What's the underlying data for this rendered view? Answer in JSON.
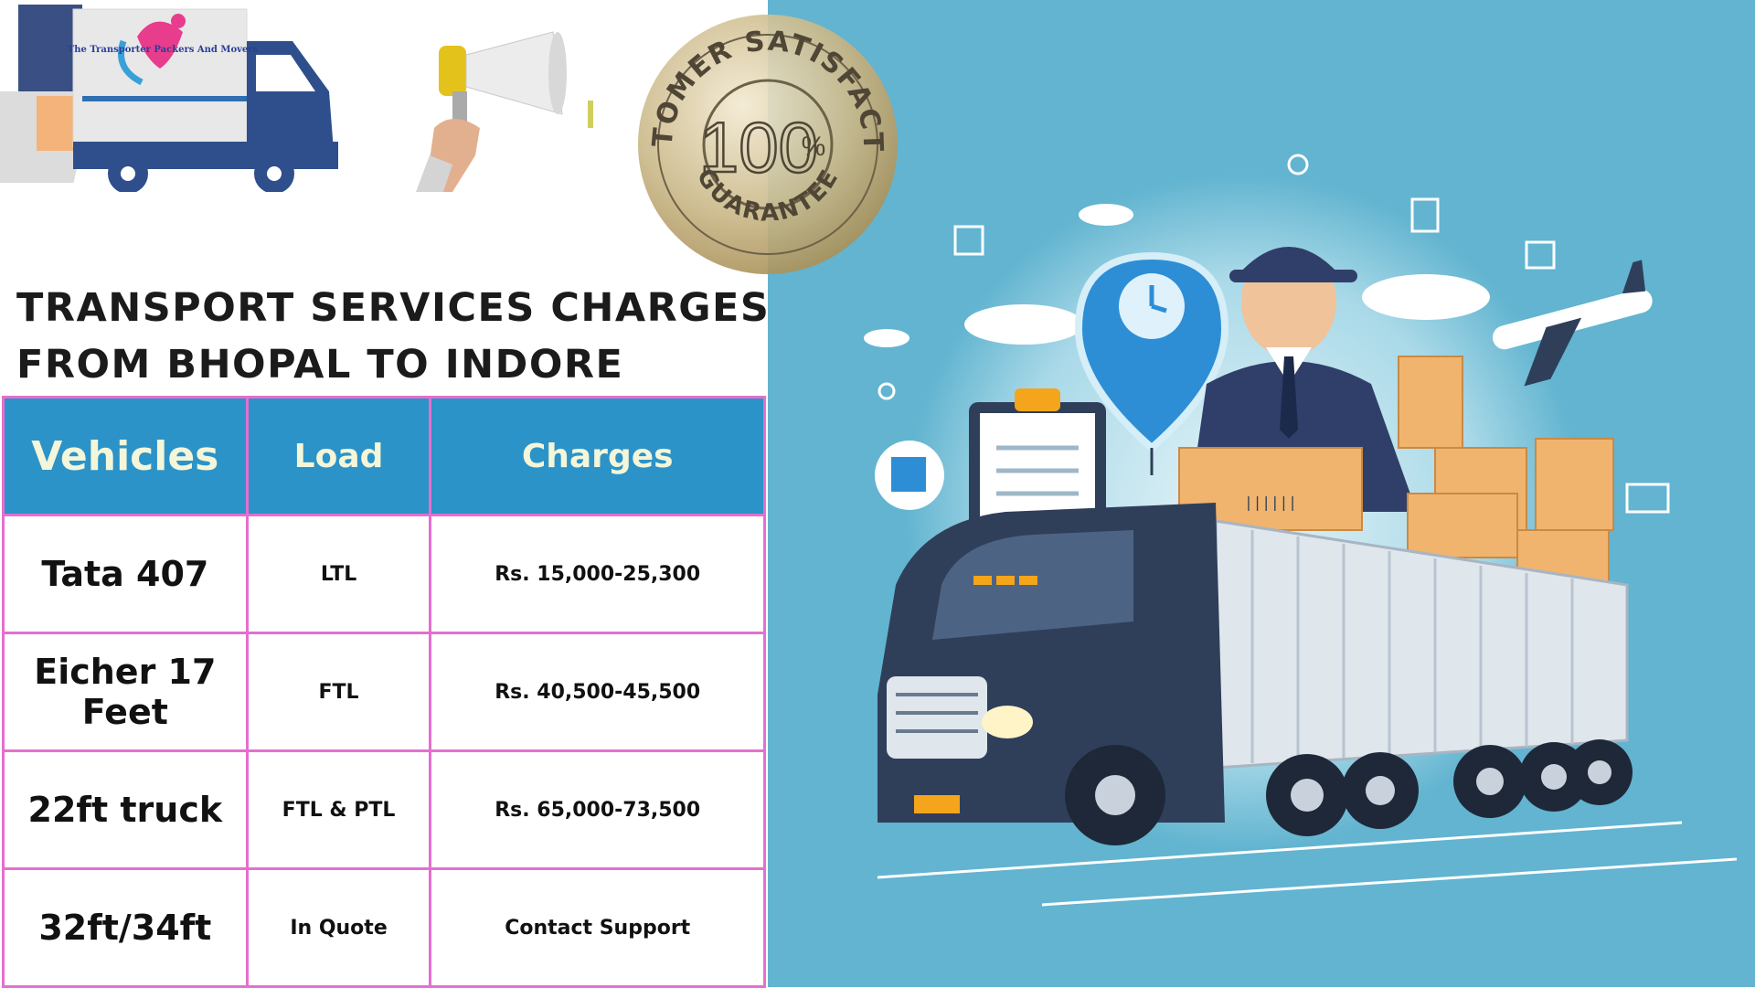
{
  "logo": {
    "text": "The Transporter Packers And Movers"
  },
  "seal": {
    "top_arc": "CUSTOMER SATISFACTION",
    "value": "100",
    "unit": "%",
    "bottom_arc": "GUARANTEE"
  },
  "title": {
    "line1": "Transport Services Charges",
    "line2": "From Bhopal to Indore"
  },
  "table": {
    "headers": [
      "Vehicles",
      "Load",
      "Charges"
    ],
    "rows": [
      [
        "Tata 407",
        "LTL",
        "Rs. 15,000-25,300"
      ],
      [
        "Eicher 17 Feet",
        "FTL",
        "Rs. 40,500-45,500"
      ],
      [
        "22ft truck",
        "FTL & PTL",
        "Rs. 65,000-73,500"
      ],
      [
        "32ft/34ft",
        "In Quote",
        "Contact Support"
      ]
    ]
  },
  "illustration": {
    "truck_label": "",
    "box_label": "||||||"
  },
  "colors": {
    "header_blue": "#2b93c8",
    "border_pink": "#e46fcf",
    "bg_blue": "#62b4d0"
  }
}
